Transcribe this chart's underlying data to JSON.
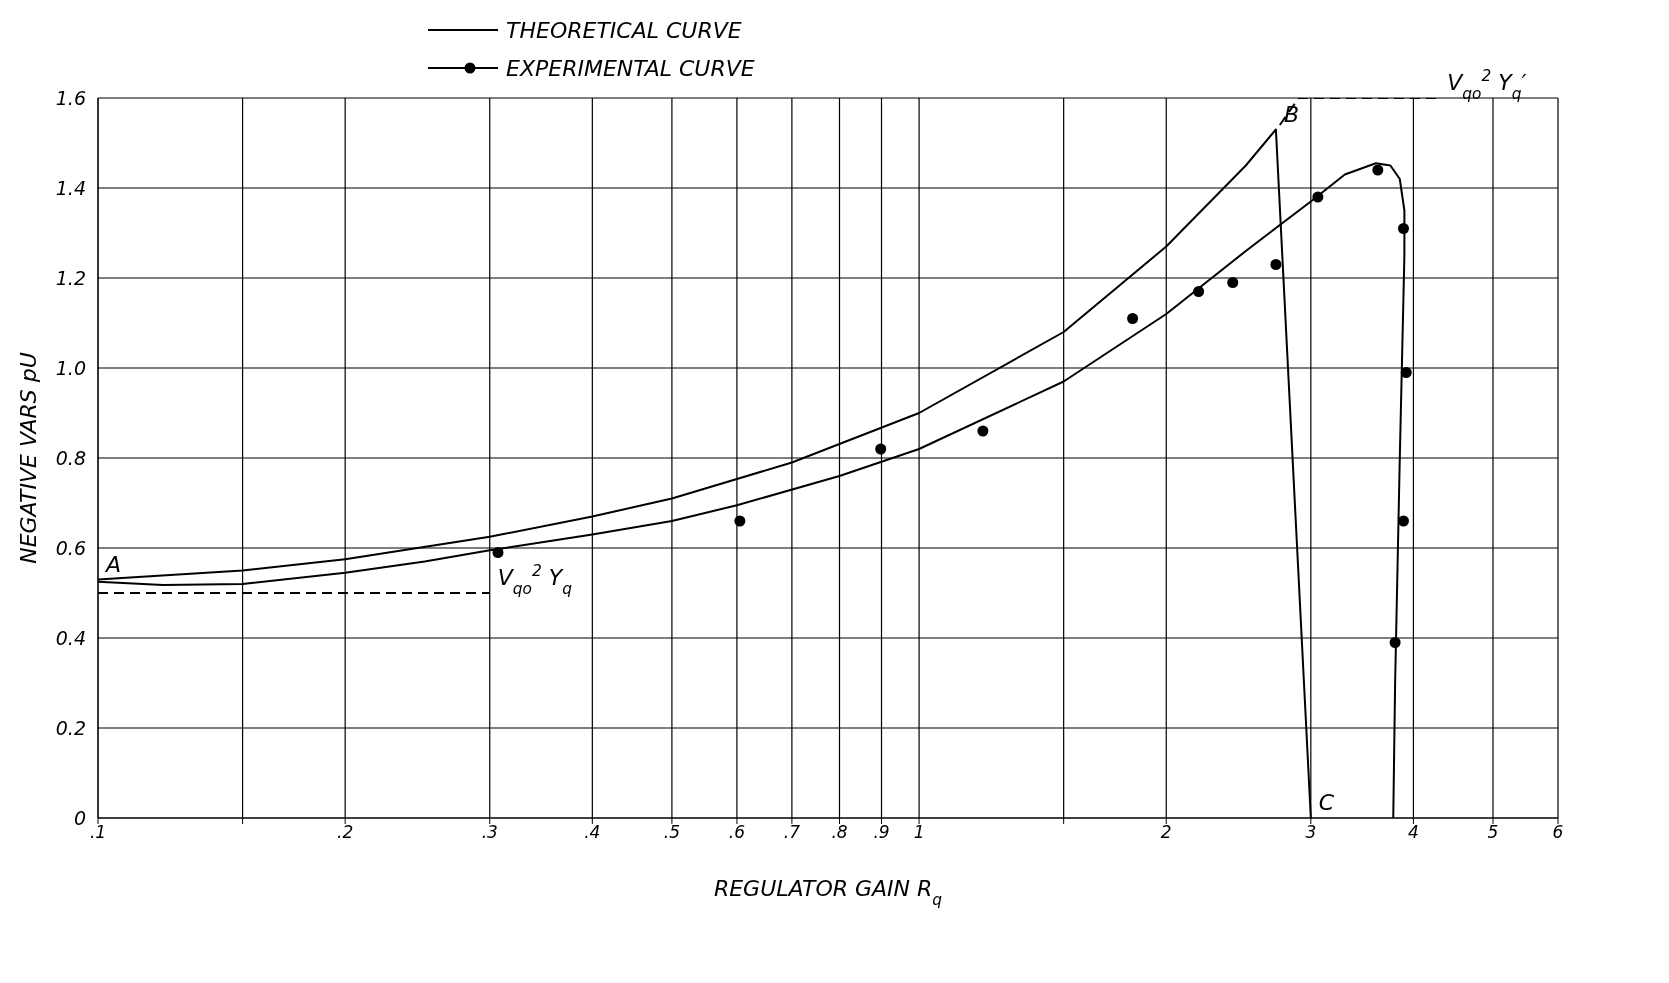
{
  "chart_data": {
    "type": "line",
    "xlabel": "REGULATOR GAIN R$_{q}$",
    "ylabel": "NEGATIVE VARS pU",
    "log": "x",
    "xlim": [
      0.1,
      6
    ],
    "xticks": [
      {
        "value": 0.1,
        "label": ".1"
      },
      {
        "value": 0.15,
        "label": null
      },
      {
        "value": 0.2,
        "label": ".2"
      },
      {
        "value": 0.3,
        "label": ".3"
      },
      {
        "value": 0.4,
        "label": ".4"
      },
      {
        "value": 0.5,
        "label": ".5"
      },
      {
        "value": 0.6,
        "label": ".6"
      },
      {
        "value": 0.7,
        "label": ".7"
      },
      {
        "value": 0.8,
        "label": ".8"
      },
      {
        "value": 0.9,
        "label": ".9"
      },
      1,
      {
        "value": 1.5,
        "label": null
      },
      2,
      3,
      4,
      5,
      6
    ],
    "ylim": [
      0,
      1.6
    ],
    "yticks": [
      0,
      {
        "value": 0.2,
        "label": "0.2"
      },
      {
        "value": 0.4,
        "label": "0.4"
      },
      {
        "value": 0.6,
        "label": "0.6"
      },
      {
        "value": 0.8,
        "label": "0.8"
      },
      {
        "value": 1.0,
        "label": "1.0"
      },
      {
        "value": 1.2,
        "label": "1.2"
      },
      {
        "value": 1.4,
        "label": "1.4"
      },
      {
        "value": 1.6,
        "label": "1.6"
      }
    ],
    "grid": true,
    "legend": "top",
    "series": [
      {
        "name": "THEORETICAL CURVE",
        "color": "#000000",
        "marker": "none",
        "x": [
          0.1,
          0.15,
          0.2,
          0.3,
          0.4,
          0.5,
          0.7,
          1,
          1.5,
          2,
          2.5,
          2.72,
          3.0
        ],
        "values": [
          0.53,
          0.55,
          0.575,
          0.625,
          0.67,
          0.71,
          0.79,
          0.9,
          1.08,
          1.27,
          1.45,
          1.53,
          0
        ]
      },
      {
        "name": "EXPERIMENTAL CURVE",
        "type": "scatter",
        "color": "#000000",
        "marker": "circle",
        "x": [
          0.307,
          0.605,
          0.898,
          1.196,
          1.82,
          2.19,
          2.41,
          2.72,
          3.06,
          3.62,
          3.89,
          3.92,
          3.89,
          3.8
        ],
        "values": [
          0.59,
          0.66,
          0.82,
          0.86,
          1.11,
          1.17,
          1.19,
          1.23,
          1.38,
          1.44,
          1.31,
          0.99,
          0.66,
          0.39
        ]
      },
      {
        "color": "#000000",
        "marker": "none",
        "x": [
          0.1,
          0.12,
          0.15,
          0.2,
          0.25,
          0.3,
          0.4,
          0.5,
          0.6,
          0.8,
          1,
          1.5,
          2,
          2.5,
          3,
          3.3,
          3.6,
          3.75,
          3.85,
          3.9,
          3.9,
          3.85,
          3.8,
          3.78
        ],
        "values": [
          0.525,
          0.518,
          0.52,
          0.545,
          0.57,
          0.595,
          0.63,
          0.66,
          0.695,
          0.76,
          0.82,
          0.97,
          1.12,
          1.26,
          1.37,
          1.43,
          1.455,
          1.45,
          1.42,
          1.35,
          1.25,
          0.8,
          0.3,
          0
        ]
      },
      {
        "color": "#000000",
        "marker": "none",
        "line_style": "dashed",
        "x": [
          0.1,
          0.3
        ],
        "values": [
          0.5,
          0.5
        ]
      },
      {
        "color": "#000000",
        "marker": "none",
        "line_style": "dashed",
        "x": [
          2.75,
          2.9,
          4.3
        ],
        "values": [
          1.54,
          1.6,
          1.6
        ]
      }
    ],
    "annotations": [
      {
        "text": "A",
        "x": 0.1,
        "y": 0.53
      },
      {
        "text": "B",
        "x": 2.72,
        "y": 1.53
      },
      {
        "text": "C",
        "x": 3.0,
        "y": 0
      },
      {
        "text": "V$_{qo}$$^{2}$ Y$_{q}$",
        "x": 0.3,
        "y": 0.5
      },
      {
        "text": "V$_{qo}$$^{2}$ Y$_{q}$′",
        "x": 4.3,
        "y": 1.6
      }
    ]
  }
}
